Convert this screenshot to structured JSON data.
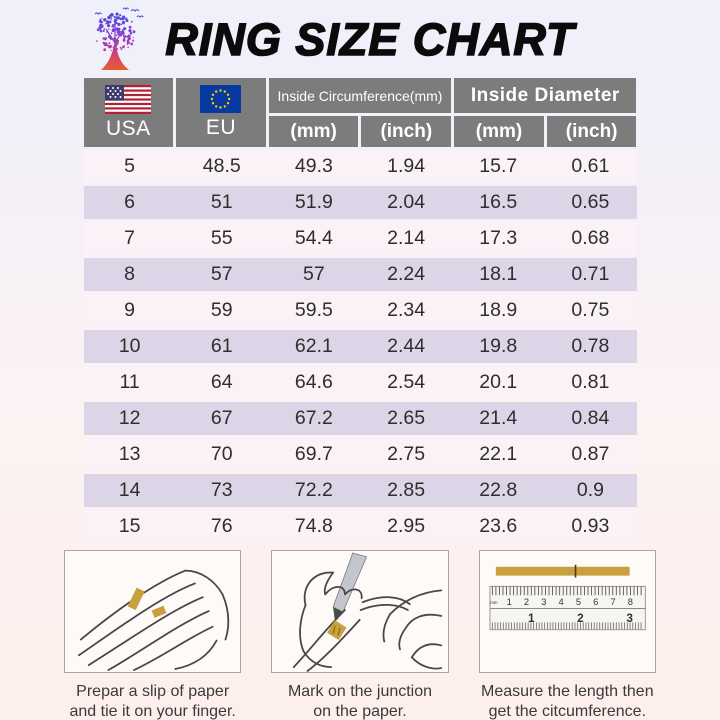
{
  "title": "RING SIZE CHART",
  "table": {
    "header": {
      "usa_label": "USA",
      "eu_label": "EU",
      "circumference_label": "Inside Circumference(mm)",
      "diameter_label": "Inside Diameter",
      "sub_labels": [
        "(mm)",
        "(inch)",
        "(mm)",
        "(inch)"
      ]
    },
    "rows": [
      [
        "5",
        "48.5",
        "49.3",
        "1.94",
        "15.7",
        "0.61"
      ],
      [
        "6",
        "51",
        "51.9",
        "2.04",
        "16.5",
        "0.65"
      ],
      [
        "7",
        "55",
        "54.4",
        "2.14",
        "17.3",
        "0.68"
      ],
      [
        "8",
        "57",
        "57",
        "2.24",
        "18.1",
        "0.71"
      ],
      [
        "9",
        "59",
        "59.5",
        "2.34",
        "18.9",
        "0.75"
      ],
      [
        "10",
        "61",
        "62.1",
        "2.44",
        "19.8",
        "0.78"
      ],
      [
        "11",
        "64",
        "64.6",
        "2.54",
        "20.1",
        "0.81"
      ],
      [
        "12",
        "67",
        "67.2",
        "2.65",
        "21.4",
        "0.84"
      ],
      [
        "13",
        "70",
        "69.7",
        "2.75",
        "22.1",
        "0.87"
      ],
      [
        "14",
        "73",
        "72.2",
        "2.85",
        "22.8",
        "0.9"
      ],
      [
        "15",
        "76",
        "74.8",
        "2.95",
        "23.6",
        "0.93"
      ]
    ]
  },
  "instructions": [
    {
      "caption_line1": "Prepar a slip of paper",
      "caption_line2": "and tie it on your finger.",
      "icon": "hand-with-paper-strip"
    },
    {
      "caption_line1": "Mark on the junction",
      "caption_line2": "on the paper.",
      "icon": "pen-marking-junction"
    },
    {
      "caption_line1": "Measure  the length then",
      "caption_line2": "get the citcumference.",
      "icon": "ruler-measuring-strip",
      "ruler": {
        "unit_label": "mm",
        "cm_labels": [
          "1",
          "2",
          "3",
          "4",
          "5",
          "6",
          "7",
          "8"
        ],
        "inch_labels": [
          "1",
          "2",
          "3"
        ]
      }
    }
  ],
  "colors": {
    "header_gray": "#7c7c7c",
    "row_light": "#fbf2f8",
    "row_dark": "#dcd4e7",
    "gold": "#c8a13e",
    "bg_top": "#eff0fa",
    "bg_bottom": "#fdefeb",
    "us_flag_red": "#b22234",
    "us_flag_blue": "#3c3b6e",
    "eu_flag_blue": "#073a9e",
    "eu_star_yellow": "#ffcc00"
  }
}
